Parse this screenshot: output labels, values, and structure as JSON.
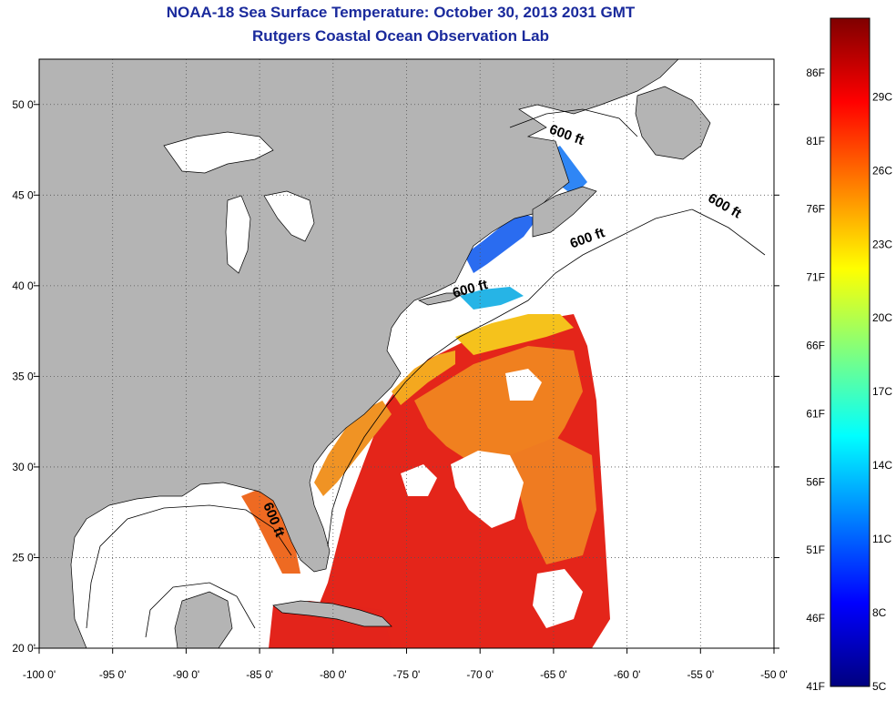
{
  "title": {
    "line1": "NOAA-18 Sea Surface Temperature:  October 30, 2013 2031 GMT",
    "line2": "Rutgers Coastal Ocean Observation Lab"
  },
  "map": {
    "lon_range": [
      -100,
      -50
    ],
    "lat_range": [
      20,
      52.5
    ],
    "lon_ticks": [
      {
        "value": -100,
        "label": "-100 0'"
      },
      {
        "value": -95,
        "label": "-95 0'"
      },
      {
        "value": -90,
        "label": "-90 0'"
      },
      {
        "value": -85,
        "label": "-85 0'"
      },
      {
        "value": -80,
        "label": "-80 0'"
      },
      {
        "value": -75,
        "label": "-75 0'"
      },
      {
        "value": -70,
        "label": "-70 0'"
      },
      {
        "value": -65,
        "label": "-65 0'"
      },
      {
        "value": -60,
        "label": "-60 0'"
      },
      {
        "value": -55,
        "label": "-55 0'"
      },
      {
        "value": -50,
        "label": "-50 0'"
      }
    ],
    "lat_ticks": [
      {
        "value": 20,
        "label": "20 0'"
      },
      {
        "value": 25,
        "label": "25 0'"
      },
      {
        "value": 30,
        "label": "30 0'"
      },
      {
        "value": 35,
        "label": "35 0'"
      },
      {
        "value": 40,
        "label": "40 0'"
      },
      {
        "value": 45,
        "label": "45 0'"
      },
      {
        "value": 50,
        "label": "50 0'"
      }
    ],
    "contour_labels": [
      {
        "text": "600 ft",
        "lon": -64.2,
        "lat": 48.1,
        "rotate": 20
      },
      {
        "text": "600 ft",
        "lon": -53.5,
        "lat": 44.2,
        "rotate": 30
      },
      {
        "text": "600 ft",
        "lon": -62.6,
        "lat": 42.4,
        "rotate": -20
      },
      {
        "text": "600 ft",
        "lon": -70.6,
        "lat": 39.6,
        "rotate": -15
      },
      {
        "text": "600 ft",
        "lon": -84.3,
        "lat": 27.0,
        "rotate": 68
      }
    ],
    "colors": {
      "land": "#b4b4b4",
      "water_nodata": "#ffffff",
      "grid": "#555555"
    }
  },
  "colorbar": {
    "left_labels": [
      {
        "value": 41,
        "label": "41F"
      },
      {
        "value": 46,
        "label": "46F"
      },
      {
        "value": 51,
        "label": "51F"
      },
      {
        "value": 56,
        "label": "56F"
      },
      {
        "value": 61,
        "label": "61F"
      },
      {
        "value": 66,
        "label": "66F"
      },
      {
        "value": 71,
        "label": "71F"
      },
      {
        "value": 76,
        "label": "76F"
      },
      {
        "value": 81,
        "label": "81F"
      },
      {
        "value": 86,
        "label": "86F"
      }
    ],
    "right_labels": [
      {
        "value": 5,
        "label": "5C"
      },
      {
        "value": 8,
        "label": "8C"
      },
      {
        "value": 11,
        "label": "11C"
      },
      {
        "value": 14,
        "label": "14C"
      },
      {
        "value": 17,
        "label": "17C"
      },
      {
        "value": 20,
        "label": "20C"
      },
      {
        "value": 23,
        "label": "23C"
      },
      {
        "value": 26,
        "label": "26C"
      },
      {
        "value": 29,
        "label": "29C"
      }
    ],
    "range_f": [
      41,
      90
    ],
    "range_c": [
      5,
      32.2
    ],
    "palette": [
      "#00007f",
      "#0000ff",
      "#007fff",
      "#00ffff",
      "#7fff7f",
      "#ffff00",
      "#ff7f00",
      "#ff0000",
      "#7f0000"
    ]
  }
}
